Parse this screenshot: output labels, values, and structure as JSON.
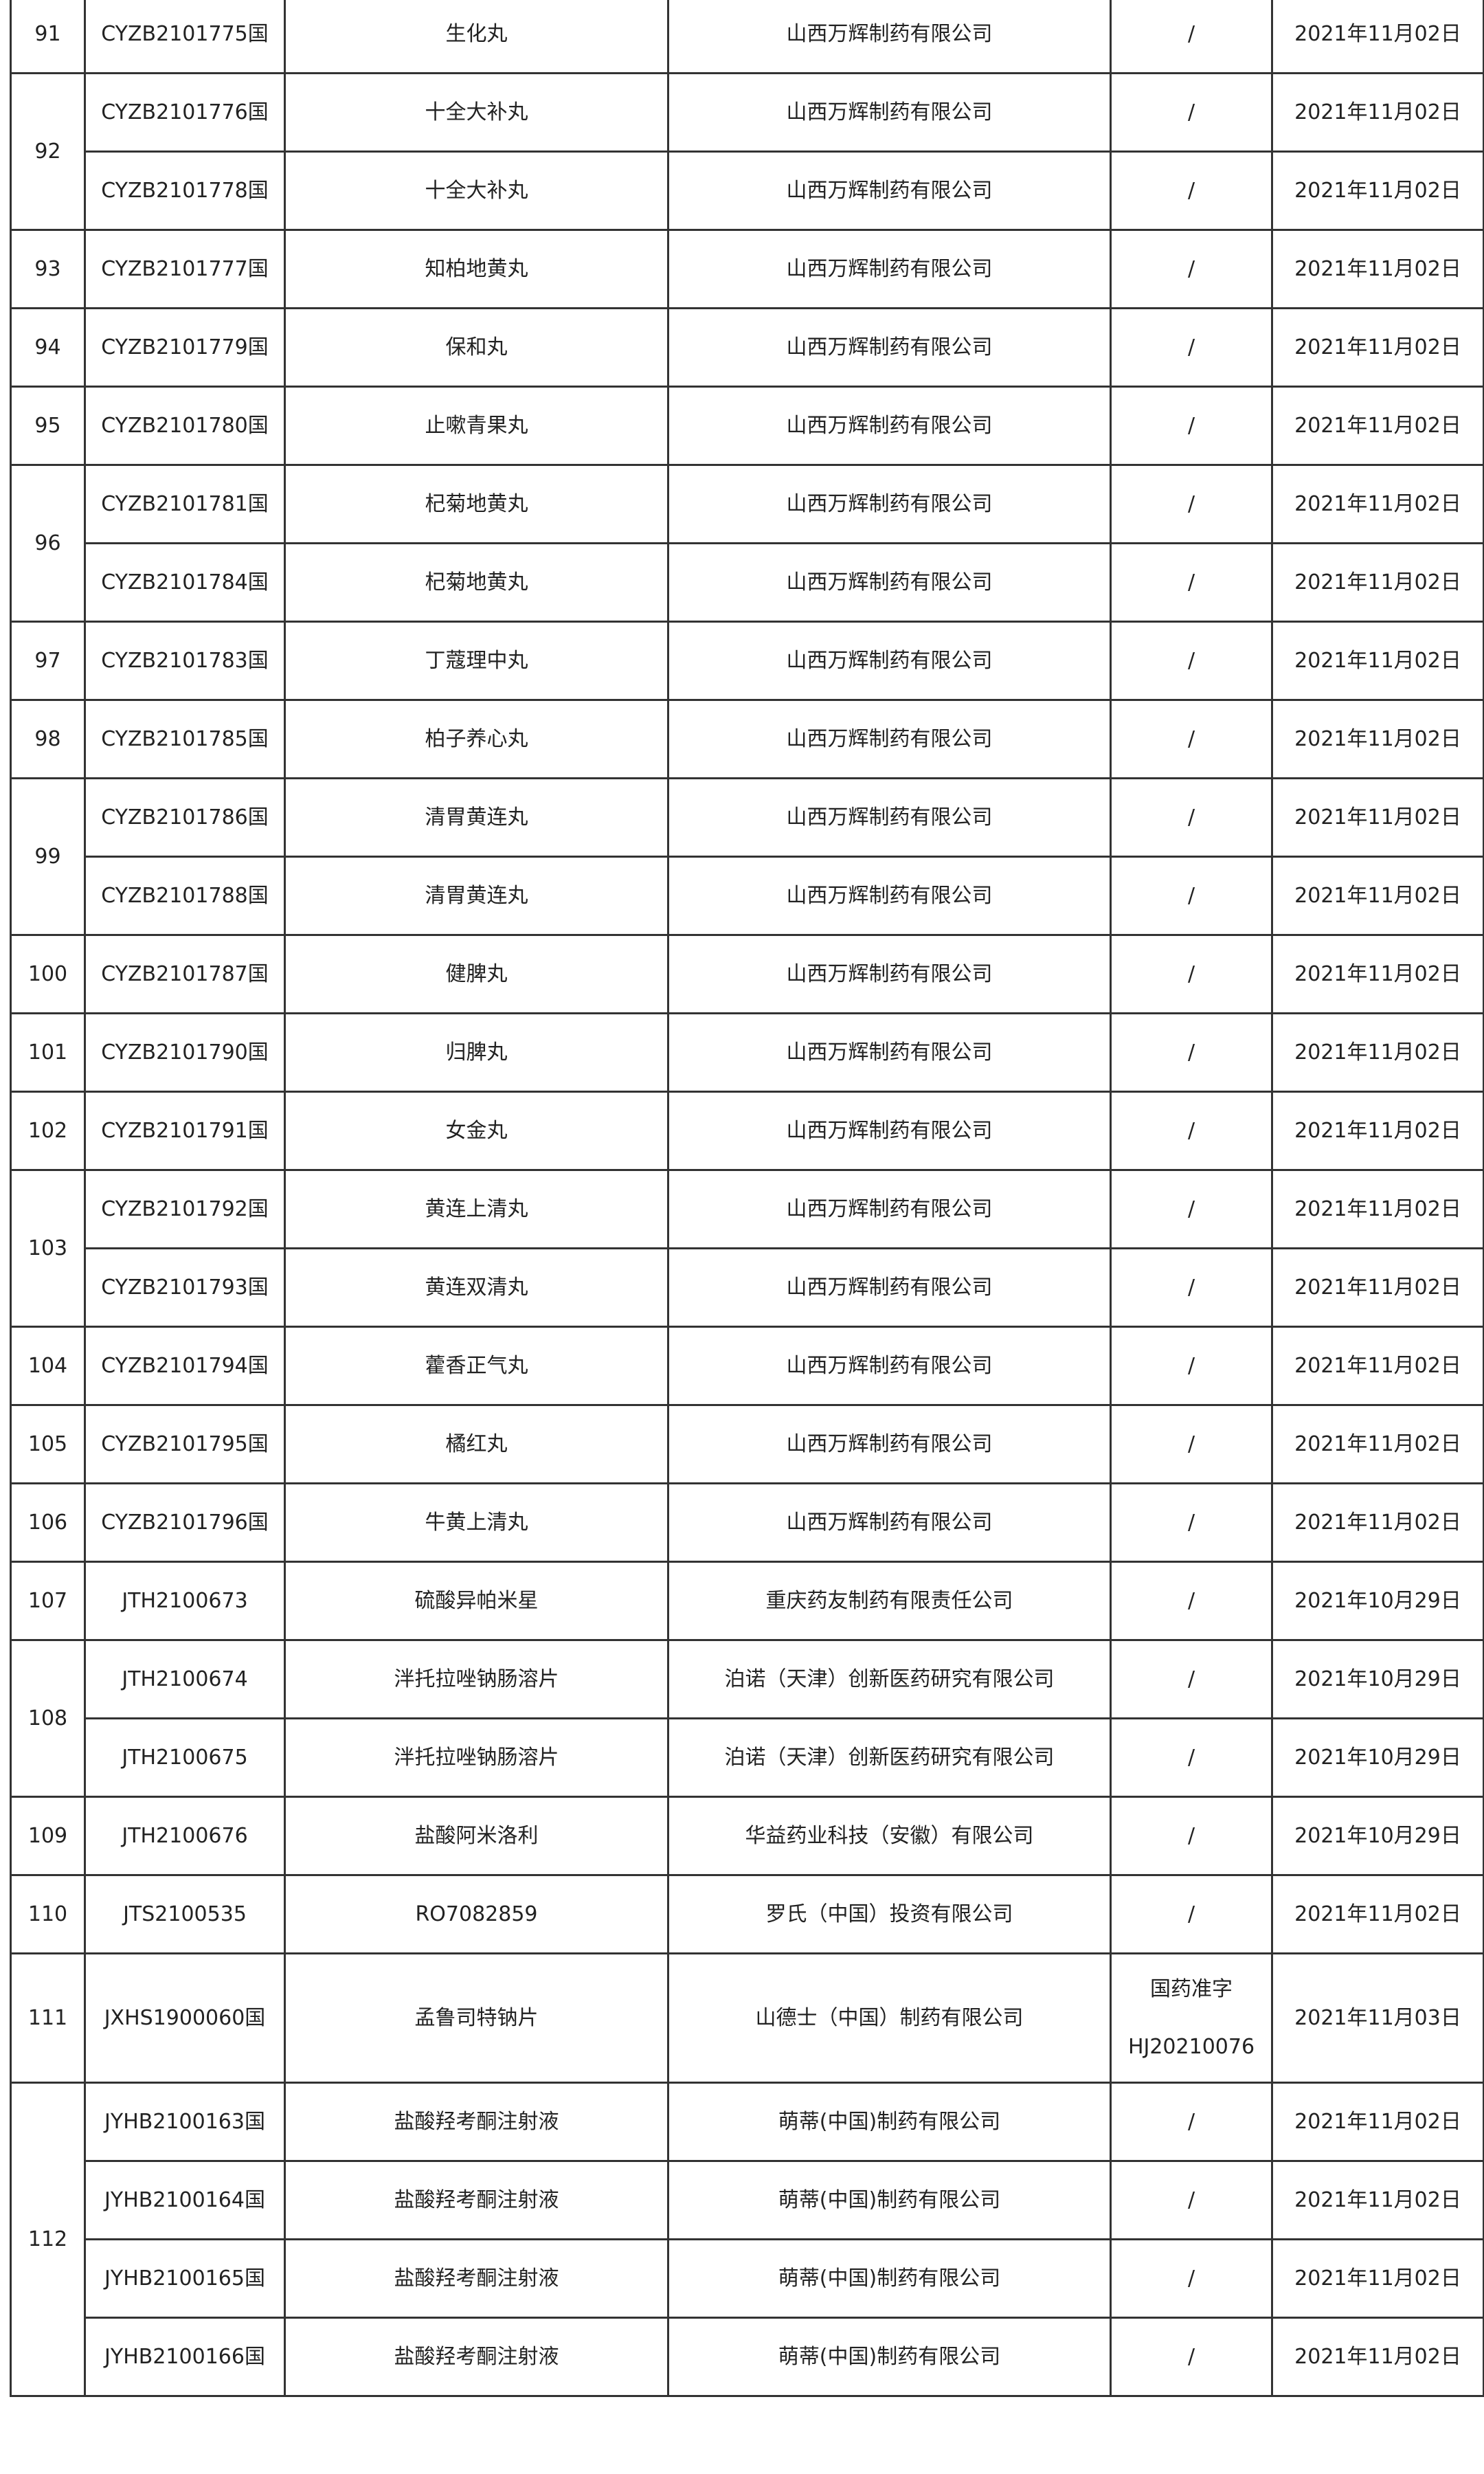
{
  "table": {
    "groups": [
      {
        "no": "91",
        "items": [
          {
            "code": "CYZB2101775国",
            "name": "生化丸",
            "company": "山西万辉制药有限公司",
            "approval": [
              "/"
            ],
            "date": "2021年11月02日"
          }
        ]
      },
      {
        "no": "92",
        "items": [
          {
            "code": "CYZB2101776国",
            "name": "十全大补丸",
            "company": "山西万辉制药有限公司",
            "approval": [
              "/"
            ],
            "date": "2021年11月02日"
          },
          {
            "code": "CYZB2101778国",
            "name": "十全大补丸",
            "company": "山西万辉制药有限公司",
            "approval": [
              "/"
            ],
            "date": "2021年11月02日"
          }
        ]
      },
      {
        "no": "93",
        "items": [
          {
            "code": "CYZB2101777国",
            "name": "知柏地黄丸",
            "company": "山西万辉制药有限公司",
            "approval": [
              "/"
            ],
            "date": "2021年11月02日"
          }
        ]
      },
      {
        "no": "94",
        "items": [
          {
            "code": "CYZB2101779国",
            "name": "保和丸",
            "company": "山西万辉制药有限公司",
            "approval": [
              "/"
            ],
            "date": "2021年11月02日"
          }
        ]
      },
      {
        "no": "95",
        "items": [
          {
            "code": "CYZB2101780国",
            "name": "止嗽青果丸",
            "company": "山西万辉制药有限公司",
            "approval": [
              "/"
            ],
            "date": "2021年11月02日"
          }
        ]
      },
      {
        "no": "96",
        "items": [
          {
            "code": "CYZB2101781国",
            "name": "杞菊地黄丸",
            "company": "山西万辉制药有限公司",
            "approval": [
              "/"
            ],
            "date": "2021年11月02日"
          },
          {
            "code": "CYZB2101784国",
            "name": "杞菊地黄丸",
            "company": "山西万辉制药有限公司",
            "approval": [
              "/"
            ],
            "date": "2021年11月02日"
          }
        ]
      },
      {
        "no": "97",
        "items": [
          {
            "code": "CYZB2101783国",
            "name": "丁蔻理中丸",
            "company": "山西万辉制药有限公司",
            "approval": [
              "/"
            ],
            "date": "2021年11月02日"
          }
        ]
      },
      {
        "no": "98",
        "items": [
          {
            "code": "CYZB2101785国",
            "name": "柏子养心丸",
            "company": "山西万辉制药有限公司",
            "approval": [
              "/"
            ],
            "date": "2021年11月02日"
          }
        ]
      },
      {
        "no": "99",
        "items": [
          {
            "code": "CYZB2101786国",
            "name": "清胃黄连丸",
            "company": "山西万辉制药有限公司",
            "approval": [
              "/"
            ],
            "date": "2021年11月02日"
          },
          {
            "code": "CYZB2101788国",
            "name": "清胃黄连丸",
            "company": "山西万辉制药有限公司",
            "approval": [
              "/"
            ],
            "date": "2021年11月02日"
          }
        ]
      },
      {
        "no": "100",
        "items": [
          {
            "code": "CYZB2101787国",
            "name": "健脾丸",
            "company": "山西万辉制药有限公司",
            "approval": [
              "/"
            ],
            "date": "2021年11月02日"
          }
        ]
      },
      {
        "no": "101",
        "items": [
          {
            "code": "CYZB2101790国",
            "name": "归脾丸",
            "company": "山西万辉制药有限公司",
            "approval": [
              "/"
            ],
            "date": "2021年11月02日"
          }
        ]
      },
      {
        "no": "102",
        "items": [
          {
            "code": "CYZB2101791国",
            "name": "女金丸",
            "company": "山西万辉制药有限公司",
            "approval": [
              "/"
            ],
            "date": "2021年11月02日"
          }
        ]
      },
      {
        "no": "103",
        "items": [
          {
            "code": "CYZB2101792国",
            "name": "黄连上清丸",
            "company": "山西万辉制药有限公司",
            "approval": [
              "/"
            ],
            "date": "2021年11月02日"
          },
          {
            "code": "CYZB2101793国",
            "name": "黄连双清丸",
            "company": "山西万辉制药有限公司",
            "approval": [
              "/"
            ],
            "date": "2021年11月02日"
          }
        ]
      },
      {
        "no": "104",
        "items": [
          {
            "code": "CYZB2101794国",
            "name": "藿香正气丸",
            "company": "山西万辉制药有限公司",
            "approval": [
              "/"
            ],
            "date": "2021年11月02日"
          }
        ]
      },
      {
        "no": "105",
        "items": [
          {
            "code": "CYZB2101795国",
            "name": "橘红丸",
            "company": "山西万辉制药有限公司",
            "approval": [
              "/"
            ],
            "date": "2021年11月02日"
          }
        ]
      },
      {
        "no": "106",
        "items": [
          {
            "code": "CYZB2101796国",
            "name": "牛黄上清丸",
            "company": "山西万辉制药有限公司",
            "approval": [
              "/"
            ],
            "date": "2021年11月02日"
          }
        ]
      },
      {
        "no": "107",
        "items": [
          {
            "code": "JTH2100673",
            "name": "硫酸异帕米星",
            "company": "重庆药友制药有限责任公司",
            "approval": [
              "/"
            ],
            "date": "2021年10月29日"
          }
        ]
      },
      {
        "no": "108",
        "items": [
          {
            "code": "JTH2100674",
            "name": "泮托拉唑钠肠溶片",
            "company": "泊诺（天津）创新医药研究有限公司",
            "approval": [
              "/"
            ],
            "date": "2021年10月29日"
          },
          {
            "code": "JTH2100675",
            "name": "泮托拉唑钠肠溶片",
            "company": "泊诺（天津）创新医药研究有限公司",
            "approval": [
              "/"
            ],
            "date": "2021年10月29日"
          }
        ]
      },
      {
        "no": "109",
        "items": [
          {
            "code": "JTH2100676",
            "name": "盐酸阿米洛利",
            "company": "华益药业科技（安徽）有限公司",
            "approval": [
              "/"
            ],
            "date": "2021年10月29日"
          }
        ]
      },
      {
        "no": "110",
        "items": [
          {
            "code": "JTS2100535",
            "name": "RO7082859",
            "company": "罗氏（中国）投资有限公司",
            "approval": [
              "/"
            ],
            "date": "2021年11月02日"
          }
        ]
      },
      {
        "no": "111",
        "tall": true,
        "items": [
          {
            "code": "JXHS1900060国",
            "name": "孟鲁司特钠片",
            "company": "山德士（中国）制药有限公司",
            "approval": [
              "国药准字",
              "HJ20210076"
            ],
            "date": "2021年11月03日"
          }
        ]
      },
      {
        "no": "112",
        "items": [
          {
            "code": "JYHB2100163国",
            "name": "盐酸羟考酮注射液",
            "company": "萌蒂(中国)制药有限公司",
            "approval": [
              "/"
            ],
            "date": "2021年11月02日"
          },
          {
            "code": "JYHB2100164国",
            "name": "盐酸羟考酮注射液",
            "company": "萌蒂(中国)制药有限公司",
            "approval": [
              "/"
            ],
            "date": "2021年11月02日"
          },
          {
            "code": "JYHB2100165国",
            "name": "盐酸羟考酮注射液",
            "company": "萌蒂(中国)制药有限公司",
            "approval": [
              "/"
            ],
            "date": "2021年11月02日"
          },
          {
            "code": "JYHB2100166国",
            "name": "盐酸羟考酮注射液",
            "company": "萌蒂(中国)制药有限公司",
            "approval": [
              "/"
            ],
            "date": "2021年11月02日"
          }
        ]
      }
    ]
  }
}
